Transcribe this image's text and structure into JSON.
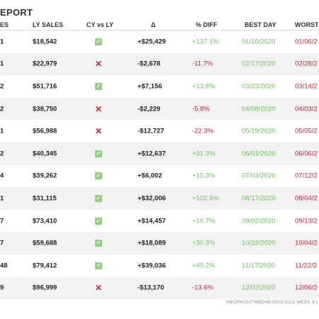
{
  "title": "EPORT",
  "headers": {
    "sales": "ES",
    "ly_sales": "LY SALES",
    "cy_vs_ly": "CY vs LY",
    "delta": "Δ",
    "pct_diff": "% DIFF",
    "best_day": "BEST DAY",
    "worst_day": "WORST"
  },
  "rows": [
    {
      "sales": "1",
      "ly_sales": "$18,542",
      "cmp": "up",
      "delta": "+$25,429",
      "pct": "+137.1%",
      "best": "01/16/2020",
      "worst": "01/06/2"
    },
    {
      "sales": "1",
      "ly_sales": "$22,979",
      "cmp": "down",
      "delta": "-$2,678",
      "pct": "-11.7%",
      "best": "02/17/2020",
      "worst": "02/28/2"
    },
    {
      "sales": "2",
      "ly_sales": "$51,716",
      "cmp": "up",
      "delta": "+$7,156",
      "pct": "+13.8%",
      "best": "03/23/2020",
      "worst": "03/14/2"
    },
    {
      "sales": "2",
      "ly_sales": "$38,750",
      "cmp": "down",
      "delta": "-$2,229",
      "pct": "-5.8%",
      "best": "04/08/2020",
      "worst": "04/03/2"
    },
    {
      "sales": "1",
      "ly_sales": "$56,988",
      "cmp": "down",
      "delta": "-$12,727",
      "pct": "-22.3%",
      "best": "05/19/2020",
      "worst": "05/05/2"
    },
    {
      "sales": "2",
      "ly_sales": "$40,345",
      "cmp": "up",
      "delta": "+$12,637",
      "pct": "+31.3%",
      "best": "06/01/2020",
      "worst": "06/06/2"
    },
    {
      "sales": "4",
      "ly_sales": "$39,262",
      "cmp": "up",
      "delta": "+$6,002",
      "pct": "+15.3%",
      "best": "07/03/2020",
      "worst": "07/12/2"
    },
    {
      "sales": "1",
      "ly_sales": "$31,115",
      "cmp": "up",
      "delta": "+$32,006",
      "pct": "+102.9%",
      "best": "08/17/2020",
      "worst": "08/04/2"
    },
    {
      "sales": "7",
      "ly_sales": "$73,410",
      "cmp": "up",
      "delta": "+$14,457",
      "pct": "+19.7%",
      "best": "09/02/2020",
      "worst": "09/13/2"
    },
    {
      "sales": "7",
      "ly_sales": "$59,688",
      "cmp": "up",
      "delta": "+$18,089",
      "pct": "+30.3%",
      "best": "10/22/2020",
      "worst": "10/04/2"
    },
    {
      "sales": "48",
      "ly_sales": "$79,412",
      "cmp": "up",
      "delta": "+$39,036",
      "pct": "+49.2%",
      "best": "11/17/2020",
      "worst": "11/22/2"
    },
    {
      "sales": "9",
      "ly_sales": "$96,999",
      "cmp": "down",
      "delta": "-$13,170",
      "pct": "-13.6%",
      "best": "12/02/2020",
      "worst": "12/06/2"
    }
  ],
  "icons": {
    "up": "checkmark-icon",
    "down": "cross-icon"
  },
  "colors": {
    "positive": "#6abf59",
    "negative": "#d4202e",
    "check_bg": "#8fd17e",
    "alt_row": "#f2f2f2"
  },
  "footer": "#WORKOUTWEDNESDAY2021 WEEK 6 |"
}
